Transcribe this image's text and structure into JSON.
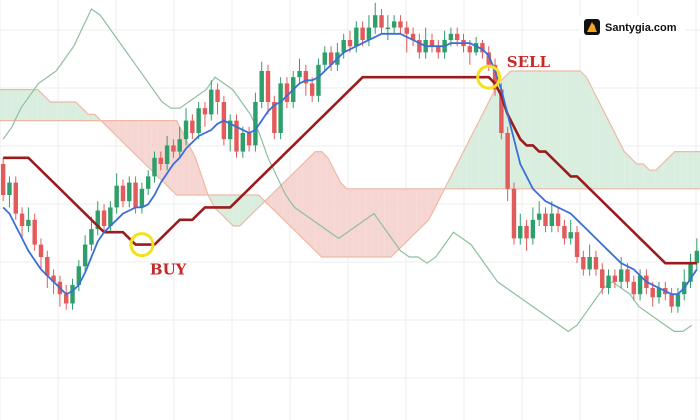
{
  "watermark": {
    "text": "Santygia.com",
    "icon": "flame-logo-icon",
    "icon_color": "#f5a623"
  },
  "colors": {
    "bull": "#2e9e6a",
    "bear": "#e25a5a",
    "tenkan": "#3a6fd8",
    "kijun": "#9b1c1c",
    "chikou": "#8fbf9f",
    "cloud_bull": "#d9eedf",
    "cloud_bear": "#f6d6d2",
    "cloud_edge": "#efb9a3",
    "marker": "#f2e21d",
    "annotation": "#c62828",
    "grid": "#eeeeee"
  },
  "chart_data": {
    "type": "candlestick",
    "indicator": "ichimoku",
    "grid": true,
    "ylim": [
      0,
      100
    ],
    "annotations": [
      {
        "label": "BUY",
        "index": 22
      },
      {
        "label": "SELL",
        "index": 77
      }
    ],
    "candles": [
      [
        60,
        50,
        62,
        48
      ],
      [
        50,
        54,
        56,
        46
      ],
      [
        54,
        44,
        56,
        42
      ],
      [
        44,
        40,
        46,
        36
      ],
      [
        40,
        42,
        46,
        38
      ],
      [
        42,
        34,
        44,
        32
      ],
      [
        34,
        30,
        36,
        26
      ],
      [
        30,
        24,
        32,
        20
      ],
      [
        24,
        22,
        26,
        18
      ],
      [
        22,
        18,
        24,
        14
      ],
      [
        18,
        15,
        21,
        13
      ],
      [
        15,
        21,
        23,
        13
      ],
      [
        21,
        27,
        29,
        19
      ],
      [
        27,
        34,
        37,
        25
      ],
      [
        34,
        39,
        43,
        32
      ],
      [
        39,
        45,
        48,
        37
      ],
      [
        45,
        40,
        47,
        38
      ],
      [
        40,
        46,
        48,
        38
      ],
      [
        46,
        53,
        57,
        44
      ],
      [
        53,
        48,
        55,
        46
      ],
      [
        48,
        54,
        56,
        46
      ],
      [
        54,
        46,
        56,
        44
      ],
      [
        46,
        52,
        54,
        44
      ],
      [
        52,
        56,
        58,
        50
      ],
      [
        56,
        62,
        64,
        54
      ],
      [
        62,
        60,
        64,
        58
      ],
      [
        60,
        66,
        69,
        58
      ],
      [
        66,
        64,
        68,
        62
      ],
      [
        64,
        68,
        72,
        62
      ],
      [
        68,
        74,
        78,
        66
      ],
      [
        74,
        70,
        76,
        68
      ],
      [
        70,
        78,
        80,
        68
      ],
      [
        78,
        76,
        80,
        72
      ],
      [
        76,
        84,
        87,
        74
      ],
      [
        84,
        80,
        86,
        76
      ],
      [
        80,
        68,
        82,
        66
      ],
      [
        68,
        74,
        76,
        64
      ],
      [
        74,
        64,
        76,
        62
      ],
      [
        64,
        70,
        72,
        62
      ],
      [
        70,
        66,
        72,
        64
      ],
      [
        66,
        80,
        83,
        64
      ],
      [
        80,
        90,
        93,
        78
      ],
      [
        90,
        80,
        92,
        76
      ],
      [
        80,
        70,
        82,
        68
      ],
      [
        70,
        86,
        88,
        68
      ],
      [
        86,
        80,
        88,
        78
      ],
      [
        80,
        88,
        90,
        78
      ],
      [
        88,
        90,
        94,
        86
      ],
      [
        90,
        86,
        92,
        82
      ],
      [
        86,
        82,
        88,
        80
      ],
      [
        82,
        92,
        94,
        80
      ],
      [
        92,
        96,
        98,
        90
      ],
      [
        96,
        92,
        98,
        90
      ],
      [
        92,
        96,
        99,
        90
      ],
      [
        96,
        100,
        102,
        94
      ],
      [
        100,
        98,
        103,
        96
      ],
      [
        98,
        104,
        106,
        96
      ],
      [
        104,
        100,
        106,
        98
      ],
      [
        100,
        104,
        108,
        98
      ],
      [
        104,
        108,
        112,
        102
      ],
      [
        108,
        104,
        110,
        102
      ],
      [
        104,
        104,
        108,
        100
      ],
      [
        104,
        106,
        108,
        102
      ],
      [
        106,
        104,
        108,
        102
      ],
      [
        104,
        102,
        106,
        96
      ],
      [
        102,
        100,
        104,
        98
      ],
      [
        100,
        96,
        102,
        94
      ],
      [
        96,
        100,
        104,
        94
      ],
      [
        100,
        98,
        102,
        96
      ],
      [
        98,
        96,
        100,
        94
      ],
      [
        96,
        100,
        103,
        94
      ],
      [
        100,
        102,
        104,
        98
      ],
      [
        102,
        100,
        104,
        98
      ],
      [
        100,
        98,
        102,
        96
      ],
      [
        98,
        96,
        100,
        92
      ],
      [
        96,
        99,
        101,
        95
      ],
      [
        99,
        96,
        100,
        94
      ],
      [
        96,
        92,
        98,
        90
      ],
      [
        92,
        84,
        94,
        82
      ],
      [
        84,
        70,
        86,
        68
      ],
      [
        70,
        52,
        72,
        48
      ],
      [
        52,
        36,
        54,
        34
      ],
      [
        36,
        40,
        44,
        34
      ],
      [
        40,
        36,
        42,
        32
      ],
      [
        36,
        42,
        46,
        34
      ],
      [
        42,
        44,
        48,
        40
      ],
      [
        44,
        40,
        46,
        38
      ],
      [
        40,
        44,
        48,
        38
      ],
      [
        44,
        40,
        46,
        38
      ],
      [
        40,
        36,
        42,
        34
      ],
      [
        36,
        38,
        42,
        34
      ],
      [
        38,
        30,
        40,
        28
      ],
      [
        30,
        26,
        32,
        24
      ],
      [
        26,
        30,
        34,
        24
      ],
      [
        30,
        26,
        32,
        24
      ],
      [
        26,
        20,
        28,
        18
      ],
      [
        20,
        24,
        26,
        18
      ],
      [
        24,
        22,
        26,
        20
      ],
      [
        22,
        26,
        30,
        20
      ],
      [
        26,
        22,
        28,
        20
      ],
      [
        22,
        18,
        24,
        16
      ],
      [
        18,
        24,
        26,
        16
      ],
      [
        24,
        20,
        26,
        18
      ],
      [
        20,
        17,
        22,
        14
      ],
      [
        17,
        20,
        22,
        15
      ],
      [
        20,
        18,
        22,
        16
      ],
      [
        18,
        14,
        20,
        12
      ],
      [
        14,
        18,
        20,
        12
      ],
      [
        18,
        22,
        26,
        16
      ],
      [
        22,
        28,
        31,
        20
      ],
      [
        28,
        32,
        36,
        26
      ]
    ],
    "tenkan_sen": [
      46,
      44,
      40,
      36,
      32,
      29,
      26,
      24,
      22,
      20,
      18,
      19,
      21,
      25,
      30,
      35,
      38,
      40,
      42,
      44,
      45,
      46,
      46,
      47,
      50,
      54,
      57,
      60,
      62,
      65,
      67,
      69,
      70,
      71,
      73,
      74,
      73,
      72,
      71,
      70,
      71,
      74,
      77,
      79,
      80,
      82,
      84,
      86,
      87,
      87,
      88,
      90,
      92,
      94,
      96,
      97,
      98,
      99,
      100,
      101,
      102,
      102,
      102,
      102,
      101,
      100,
      99,
      98,
      98,
      98,
      98,
      99,
      99,
      99,
      99,
      98,
      97,
      95,
      90,
      84,
      76,
      68,
      60,
      56,
      52,
      50,
      48,
      47,
      46,
      45,
      44,
      42,
      40,
      38,
      36,
      34,
      32,
      30,
      28,
      27,
      26,
      24,
      22,
      21,
      20,
      19,
      18,
      18,
      20,
      23,
      26
    ],
    "kijun_sen": [
      62,
      62,
      62,
      62,
      62,
      60,
      58,
      56,
      54,
      52,
      50,
      48,
      46,
      44,
      42,
      40,
      38,
      38,
      38,
      38,
      36,
      34,
      34,
      34,
      34,
      36,
      38,
      40,
      42,
      42,
      42,
      44,
      46,
      46,
      46,
      46,
      46,
      48,
      50,
      52,
      54,
      56,
      58,
      60,
      62,
      64,
      66,
      68,
      70,
      72,
      74,
      76,
      78,
      80,
      82,
      84,
      86,
      88,
      88,
      88,
      88,
      88,
      88,
      88,
      88,
      88,
      88,
      88,
      88,
      88,
      88,
      88,
      88,
      88,
      88,
      88,
      88,
      88,
      86,
      82,
      76,
      72,
      68,
      66,
      66,
      64,
      64,
      62,
      60,
      58,
      56,
      56,
      54,
      52,
      50,
      48,
      46,
      44,
      42,
      40,
      38,
      36,
      34,
      32,
      30,
      28,
      28,
      28,
      28,
      28,
      28
    ],
    "senkou_a": [
      84,
      84,
      84,
      84,
      84,
      84,
      84,
      82,
      80,
      80,
      80,
      80,
      80,
      78,
      76,
      76,
      74,
      72,
      70,
      68,
      66,
      64,
      62,
      60,
      58,
      56,
      54,
      52,
      50,
      50,
      50,
      50,
      50,
      50,
      50,
      50,
      50,
      50,
      50,
      50,
      50,
      50,
      48,
      46,
      44,
      42,
      40,
      38,
      36,
      34,
      32,
      30,
      30,
      30,
      30,
      30,
      30,
      30,
      30,
      30,
      30,
      30,
      30,
      32,
      34,
      36,
      38,
      40,
      42,
      46,
      50,
      54,
      58,
      62,
      66,
      70,
      74,
      78,
      82,
      86,
      88,
      90,
      90,
      90,
      90,
      90,
      90,
      90,
      90,
      90,
      90,
      90,
      90,
      88,
      84,
      80,
      76,
      72,
      68,
      64,
      62,
      60,
      60,
      58,
      58,
      60,
      62,
      64,
      64,
      64,
      64,
      64
    ],
    "senkou_b": [
      74,
      74,
      74,
      74,
      74,
      74,
      74,
      74,
      74,
      74,
      74,
      74,
      74,
      74,
      74,
      74,
      74,
      74,
      74,
      74,
      74,
      74,
      74,
      74,
      74,
      74,
      74,
      74,
      74,
      70,
      66,
      62,
      56,
      50,
      46,
      44,
      42,
      40,
      40,
      42,
      44,
      46,
      48,
      50,
      52,
      54,
      56,
      58,
      60,
      62,
      64,
      64,
      62,
      58,
      54,
      52,
      52,
      52,
      52,
      52,
      52,
      52,
      52,
      52,
      52,
      52,
      52,
      52,
      52,
      52,
      52,
      52,
      52,
      52,
      52,
      52,
      52,
      52,
      52,
      52,
      52,
      52,
      52,
      52,
      52,
      52,
      52,
      52,
      52,
      52,
      52,
      52,
      52,
      52,
      52,
      52,
      52,
      52,
      52,
      52,
      52,
      52,
      52,
      52,
      52,
      52,
      52,
      52,
      52,
      52,
      52,
      52
    ],
    "chikou_span": [
      68,
      72,
      78,
      82,
      86,
      88,
      90,
      94,
      98,
      104,
      110,
      108,
      104,
      100,
      96,
      92,
      88,
      84,
      80,
      78,
      78,
      80,
      82,
      84,
      88,
      86,
      84,
      80,
      76,
      70,
      62,
      56,
      50,
      46,
      44,
      42,
      40,
      38,
      36,
      38,
      40,
      42,
      44,
      40,
      36,
      32,
      30,
      30,
      28,
      30,
      34,
      38,
      36,
      34,
      30,
      26,
      22,
      20,
      18,
      16,
      14,
      12,
      10,
      8,
      6,
      8,
      12,
      16,
      20,
      22,
      20,
      18,
      14,
      12,
      10,
      8,
      6,
      6,
      8
    ]
  }
}
